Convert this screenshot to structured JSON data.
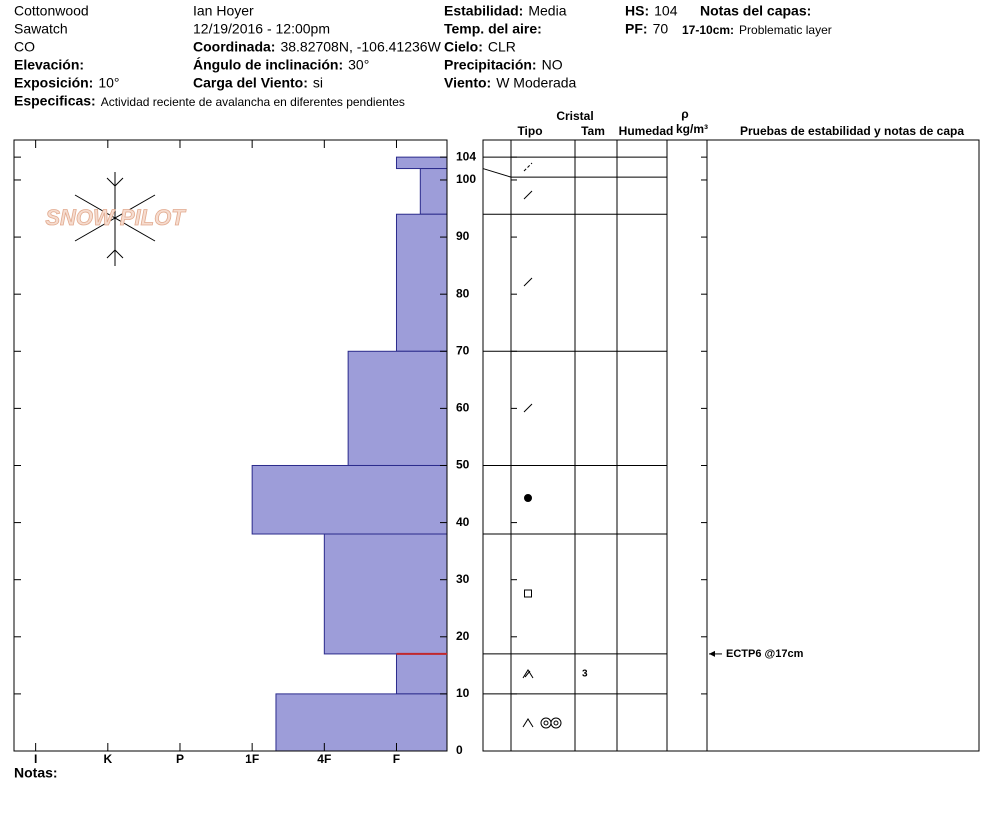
{
  "header": {
    "site": "Cottonwood",
    "range": "Sawatch",
    "state": "CO",
    "observer": "Ian Hoyer",
    "datetime": "12/19/2016 - 12:00pm",
    "fields": [
      {
        "label": "Elevación:"
      },
      {
        "label": "Exposición:",
        "value": "10°"
      },
      {
        "label": "Especificas:",
        "value": "Actividad reciente de avalancha en diferentes pendientes"
      },
      {
        "label": "Coordinada:",
        "value": "38.82708N, -106.41236W"
      },
      {
        "label": "Ángulo de inclinación:",
        "value": "30°"
      },
      {
        "label": "Carga del Viento:",
        "value": "si"
      },
      {
        "label": "Estabilidad:",
        "value": "Media"
      },
      {
        "label": "Temp. del aire:"
      },
      {
        "label": "Cielo:",
        "value": "CLR"
      },
      {
        "label": "Precipitación:",
        "value": "NO"
      },
      {
        "label": "Viento:",
        "value": "W Moderada"
      },
      {
        "label": "HS:",
        "value": 104
      },
      {
        "label": "PF:",
        "value": 70
      }
    ]
  },
  "layer_notes": {
    "title": "Notas del capas:",
    "items": [
      {
        "range": "17-10cm:",
        "text": "Problematic layer"
      }
    ]
  },
  "logo": "SNOW PILOT",
  "chart_data": {
    "type": "bar",
    "color": "#9d9dd9",
    "xlim": [
      6.3,
      0.3
    ],
    "xticks": [
      {
        "value": 6,
        "label": "I"
      },
      {
        "value": 5,
        "label": "K"
      },
      {
        "value": 4,
        "label": "P"
      },
      {
        "value": 3,
        "label": "1F"
      },
      {
        "value": 2,
        "label": "4F"
      },
      {
        "value": 1,
        "label": "F"
      }
    ],
    "ylim": [
      0,
      107
    ],
    "yticks": [
      0,
      10,
      20,
      30,
      40,
      50,
      60,
      70,
      80,
      90,
      100,
      104
    ],
    "layers": [
      {
        "top": 104,
        "bottom": 102,
        "hardness": 1
      },
      {
        "top": 102,
        "bottom": 94,
        "hardness": 0.67
      },
      {
        "top": 94,
        "bottom": 70,
        "hardness": 1
      },
      {
        "top": 70,
        "bottom": 50,
        "hardness": 1.67
      },
      {
        "top": 50,
        "bottom": 38,
        "hardness": 3
      },
      {
        "top": 38,
        "bottom": 17,
        "hardness": 2
      },
      {
        "top": 17,
        "bottom": 10,
        "hardness": 1,
        "size": 3
      },
      {
        "top": 10,
        "bottom": 0,
        "hardness": 2.67
      }
    ]
  },
  "table": {
    "group": "Cristal",
    "type": "Tipo",
    "size": "Tam",
    "moisture": "Humedad",
    "density_symbol": "ρ",
    "density_unit": "kg/m³",
    "tests": "Pruebas de estabilidad y notas de capa"
  },
  "stability_tests": [
    {
      "label": "ECTP6 @17cm",
      "depth": 17
    }
  ],
  "notes_label": "Notas:"
}
